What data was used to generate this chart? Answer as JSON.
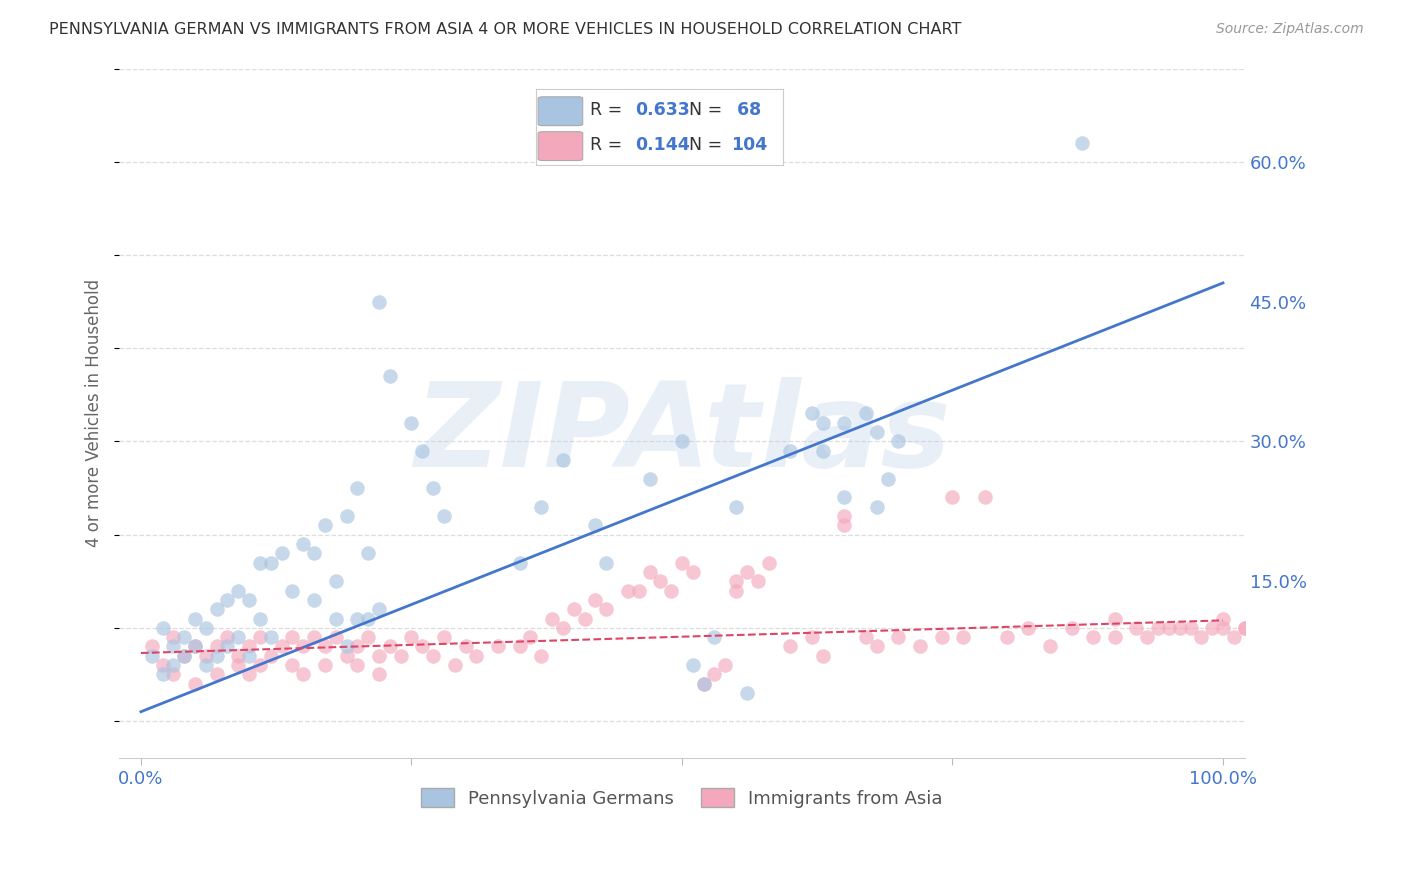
{
  "title": "PENNSYLVANIA GERMAN VS IMMIGRANTS FROM ASIA 4 OR MORE VEHICLES IN HOUSEHOLD CORRELATION CHART",
  "source": "Source: ZipAtlas.com",
  "ylabel": "4 or more Vehicles in Household",
  "xlim": [
    -2,
    102
  ],
  "ylim": [
    -0.04,
    0.7
  ],
  "ytick_vals": [
    0.0,
    0.15,
    0.3,
    0.45,
    0.6
  ],
  "ytick_labels_right": [
    "",
    "15.0%",
    "30.0%",
    "45.0%",
    "60.0%"
  ],
  "xtick_vals": [
    0,
    25,
    50,
    75,
    100
  ],
  "xtick_labels": [
    "0.0%",
    "",
    "",
    "",
    "100.0%"
  ],
  "blue_R": "0.633",
  "blue_N": "68",
  "pink_R": "0.144",
  "pink_N": "104",
  "blue_color": "#a8c4e0",
  "pink_color": "#f4a8bc",
  "blue_line_color": "#4477cc",
  "pink_line_color": "#dd4466",
  "legend_text_color": "#4477cc",
  "axis_tick_color": "#4477cc",
  "ylabel_color": "#666666",
  "title_color": "#333333",
  "watermark_text": "ZIPAtlas",
  "watermark_color": "#b8cce4",
  "source_text": "Source: ZipAtlas.com",
  "legend_label_blue": "Pennsylvania Germans",
  "legend_label_pink": "Immigrants from Asia",
  "blue_line_x0": 0,
  "blue_line_y0": 0.01,
  "blue_line_x1": 100,
  "blue_line_y1": 0.47,
  "pink_line_x0": 0,
  "pink_line_y0": 0.073,
  "pink_line_x1": 100,
  "pink_line_y1": 0.108,
  "grid_color": "#dddddd",
  "scatter_alpha": 0.65,
  "scatter_size": 110,
  "blue_scatter_x": [
    1,
    2,
    2,
    3,
    3,
    4,
    4,
    5,
    5,
    6,
    6,
    7,
    7,
    8,
    8,
    9,
    9,
    10,
    10,
    11,
    11,
    12,
    12,
    13,
    14,
    15,
    16,
    16,
    17,
    18,
    18,
    19,
    19,
    20,
    20,
    21,
    21,
    22,
    22,
    23,
    25,
    26,
    27,
    28,
    35,
    37,
    39,
    42,
    43,
    47,
    50,
    51,
    52,
    53,
    55,
    56,
    60,
    62,
    63,
    63,
    65,
    65,
    67,
    68,
    68,
    69,
    70,
    87
  ],
  "blue_scatter_y": [
    0.07,
    0.1,
    0.05,
    0.08,
    0.06,
    0.09,
    0.07,
    0.11,
    0.08,
    0.1,
    0.06,
    0.12,
    0.07,
    0.13,
    0.08,
    0.14,
    0.09,
    0.13,
    0.07,
    0.17,
    0.11,
    0.17,
    0.09,
    0.18,
    0.14,
    0.19,
    0.18,
    0.13,
    0.21,
    0.15,
    0.11,
    0.22,
    0.08,
    0.25,
    0.11,
    0.18,
    0.11,
    0.45,
    0.12,
    0.37,
    0.32,
    0.29,
    0.25,
    0.22,
    0.17,
    0.23,
    0.28,
    0.21,
    0.17,
    0.26,
    0.3,
    0.06,
    0.04,
    0.09,
    0.23,
    0.03,
    0.29,
    0.33,
    0.32,
    0.29,
    0.32,
    0.24,
    0.33,
    0.31,
    0.23,
    0.26,
    0.3,
    0.62
  ],
  "pink_scatter_x": [
    1,
    2,
    3,
    3,
    4,
    5,
    5,
    6,
    7,
    7,
    8,
    9,
    9,
    10,
    10,
    11,
    11,
    12,
    13,
    14,
    14,
    15,
    15,
    16,
    17,
    17,
    18,
    19,
    20,
    20,
    21,
    22,
    22,
    23,
    24,
    25,
    26,
    27,
    28,
    29,
    30,
    31,
    33,
    35,
    36,
    37,
    38,
    39,
    40,
    41,
    42,
    43,
    45,
    46,
    47,
    48,
    49,
    50,
    51,
    52,
    53,
    54,
    55,
    55,
    56,
    57,
    58,
    60,
    62,
    63,
    65,
    65,
    67,
    68,
    70,
    72,
    74,
    75,
    76,
    78,
    80,
    82,
    84,
    86,
    88,
    90,
    90,
    92,
    93,
    94,
    95,
    96,
    97,
    98,
    99,
    100,
    100,
    101,
    102,
    102,
    103,
    103,
    104,
    104
  ],
  "pink_scatter_y": [
    0.08,
    0.06,
    0.09,
    0.05,
    0.07,
    0.08,
    0.04,
    0.07,
    0.08,
    0.05,
    0.09,
    0.07,
    0.06,
    0.08,
    0.05,
    0.09,
    0.06,
    0.07,
    0.08,
    0.09,
    0.06,
    0.08,
    0.05,
    0.09,
    0.08,
    0.06,
    0.09,
    0.07,
    0.08,
    0.06,
    0.09,
    0.07,
    0.05,
    0.08,
    0.07,
    0.09,
    0.08,
    0.07,
    0.09,
    0.06,
    0.08,
    0.07,
    0.08,
    0.08,
    0.09,
    0.07,
    0.11,
    0.1,
    0.12,
    0.11,
    0.13,
    0.12,
    0.14,
    0.14,
    0.16,
    0.15,
    0.14,
    0.17,
    0.16,
    0.04,
    0.05,
    0.06,
    0.14,
    0.15,
    0.16,
    0.15,
    0.17,
    0.08,
    0.09,
    0.07,
    0.22,
    0.21,
    0.09,
    0.08,
    0.09,
    0.08,
    0.09,
    0.24,
    0.09,
    0.24,
    0.09,
    0.1,
    0.08,
    0.1,
    0.09,
    0.11,
    0.09,
    0.1,
    0.09,
    0.1,
    0.1,
    0.1,
    0.1,
    0.09,
    0.1,
    0.11,
    0.1,
    0.09,
    0.1,
    0.1,
    0.1,
    0.11,
    0.1,
    0.1
  ]
}
